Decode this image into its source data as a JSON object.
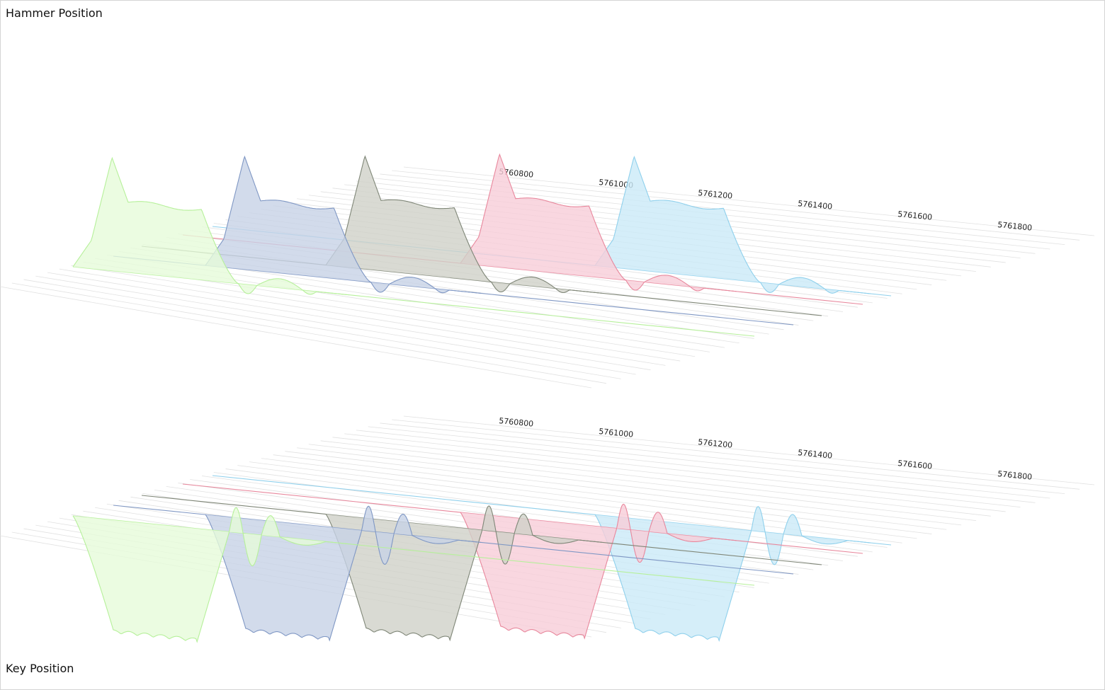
{
  "panels": {
    "hammer": {
      "title": "Hammer Position"
    },
    "key": {
      "title": "Key Position"
    }
  },
  "chart_data": [
    {
      "type": "area",
      "title": "Hammer Position",
      "x_ticks": [
        "5760800",
        "5761000",
        "5761200",
        "5761400",
        "5761600",
        "5761800"
      ],
      "grid": true,
      "series": [
        {
          "color": "#b6f09a",
          "fill": "#e6fbd9",
          "onset": 0.0,
          "shape": "hammer"
        },
        {
          "color": "#7f97c4",
          "fill": "#c7d2e6",
          "onset": 0.18,
          "shape": "hammer"
        },
        {
          "color": "#7f8677",
          "fill": "#cfd1c8",
          "onset": 0.36,
          "shape": "hammer"
        },
        {
          "color": "#e8879c",
          "fill": "#f8cdd8",
          "onset": 0.55,
          "shape": "hammer"
        },
        {
          "color": "#8fd0ec",
          "fill": "#cbeaf7",
          "onset": 0.74,
          "shape": "hammer"
        }
      ]
    },
    {
      "type": "area",
      "title": "Key Position",
      "x_ticks": [
        "5760800",
        "5761000",
        "5761200",
        "5761400",
        "5761600",
        "5761800"
      ],
      "grid": true,
      "series": [
        {
          "color": "#b6f09a",
          "fill": "#e6fbd9",
          "onset": 0.0,
          "shape": "key"
        },
        {
          "color": "#7f97c4",
          "fill": "#c7d2e6",
          "onset": 0.18,
          "shape": "key"
        },
        {
          "color": "#7f8677",
          "fill": "#cfd1c8",
          "onset": 0.36,
          "shape": "key"
        },
        {
          "color": "#e8879c",
          "fill": "#f8cdd8",
          "onset": 0.55,
          "shape": "key"
        },
        {
          "color": "#8fd0ec",
          "fill": "#cbeaf7",
          "onset": 0.74,
          "shape": "key"
        }
      ]
    }
  ]
}
